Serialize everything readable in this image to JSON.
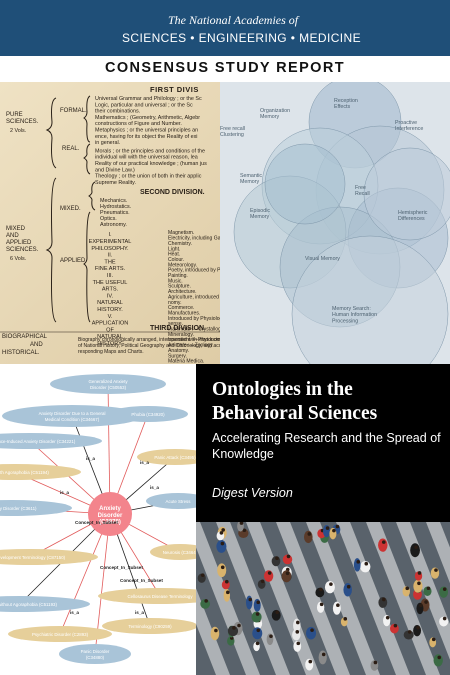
{
  "header": {
    "academies_line1": "The National Academies of",
    "academies_line2": "SCIENCES • ENGINEERING • MEDICINE",
    "bar_color": "#1f4f78"
  },
  "report_label": "CONSENSUS STUDY REPORT",
  "title_block": {
    "title": "Ontologies in the Behavioral Sciences",
    "subtitle": "Accelerating Research and the Spread of Knowledge",
    "version": "Digest Version"
  },
  "doc_panel": {
    "first_division": "FIRST DIVIS",
    "second_division": "SECOND DIVISION.",
    "third_division": "THIRD DIVISION.",
    "pure_sciences": [
      "PURE",
      "SCIENCES.",
      "2 Vols."
    ],
    "mixed_applied": [
      "MIXED",
      "AND",
      "APPLIED",
      "SCIENCES.",
      "6 Vols."
    ],
    "biographical": [
      "BIOGRAPHICAL",
      "AND",
      "HISTORICAL."
    ],
    "formal": "FORMAL.",
    "real": "REAL.",
    "mixed": "MIXED.",
    "applied": "APPLIED.",
    "formal_lines": [
      "Universal Grammar and Philology ; or the Sc",
      "Logic, particular and universal ; or the Sc",
      "their combinations.",
      "Mathematics ; (Geometry, Arithmetic, Algebr",
      "constructions of Figure and Number.",
      "Metaphysics ; or the universal principles an",
      "ence, having for its object the Reality of exi",
      "in general."
    ],
    "real_lines": [
      "Morals ; or the principles and conditions of the",
      "individual will with the universal reason, lea",
      "Reality of our practical knowledge ; (human jus",
      "and Divine Law.)",
      "Theology ; or the union of both in their applic",
      "Supreme Reality."
    ],
    "mixed_lines": [
      "Mechanics.",
      "Hydrostatics.",
      "Pneumatics.",
      "Optics.",
      "Astronomy."
    ],
    "applied_sections": [
      "I.",
      "EXPERIMENTAL",
      "PHILOSOPHY.",
      "II.",
      "THE",
      "FINE ARTS.",
      "III.",
      "THE USEFUL",
      "ARTS.",
      "IV.",
      "NATURAL",
      "HISTORY.",
      "V.",
      "APPLICATION",
      "OF",
      "NATURAL",
      "HISTORY."
    ],
    "applied_items": [
      "Magnetism.",
      "Electricity, including Galvanis",
      "Chemistry.",
      "Light.",
      "Heat.",
      "Colour.",
      "Meteorology.",
      "Poetry, introduced by Psychology",
      "Painting.",
      "Music.",
      "Sculpture.",
      "Architecture.",
      "Agriculture, introduced by Politics",
      "nomy.",
      "Commerce.",
      "Manufactures.",
      "Introduced by Physiology in its w",
      "sense.",
      "Inanimate :—Crystallography, Geolo",
      "Mineralogy.",
      "Insentient :—Phytonomy, Botany.",
      "Animate :—Zoology.",
      "Anatomy.",
      "Surgery.",
      "Materia Medica.",
      "Pharmacy.",
      "Medicine."
    ],
    "biography_lines": [
      "Biography chronologically arranged, interspersed with introductory Chapters",
      "of National History, Political Geography and Chronology, and accompanied with cor-",
      "responding Maps and Charts."
    ]
  },
  "venn_labels": [
    "Organization Memory",
    "Reception Effects",
    "Free recall Clustering",
    "Proactive Interference",
    "Free Recall",
    "Semantic Memory",
    "Hemispheric Differences",
    "Episodic Memory",
    "Visual Memory",
    "Memory Search: Human Information Processing"
  ],
  "ontology": {
    "center_label": [
      "Anxiety",
      "Disorder",
      "(C2878)"
    ],
    "node_color": "#a9c4d8",
    "tan_color": "#e6cf9a",
    "center_color": "#f3848c",
    "nodes": [
      [
        "Generalized Anxiety",
        "Disorder (C50553)"
      ],
      [
        "Anxiety Disorder Due to a General",
        "Medical Condition (C34667)"
      ],
      [
        "Phobia (C34920)"
      ],
      [
        "Substance-Induced Anxiety Disorder (C34221)"
      ],
      [
        "Panic Attack (C3495)"
      ],
      [
        "Phobia with Agoraphobia (C51194)"
      ],
      [
        "Anxiety Disorder (C3611)"
      ],
      [
        "Acute Stress"
      ],
      [
        "Development Terminology (C87150)"
      ],
      [
        "Neurosis (C3464)"
      ],
      [
        "Phobia without Agoraphobia (C51193)"
      ],
      [
        "Cellosaurus Disease Terminology"
      ],
      [
        "Psychiatric Disorder (C2893)"
      ],
      [
        "Terminology (C90259)"
      ],
      [
        "Panic Disorder",
        "(C34880)"
      ]
    ],
    "edge_labels": [
      "is_a",
      "Concept_In_Subset",
      "Concept_In_Subset",
      "Concept_In_Subset"
    ]
  }
}
